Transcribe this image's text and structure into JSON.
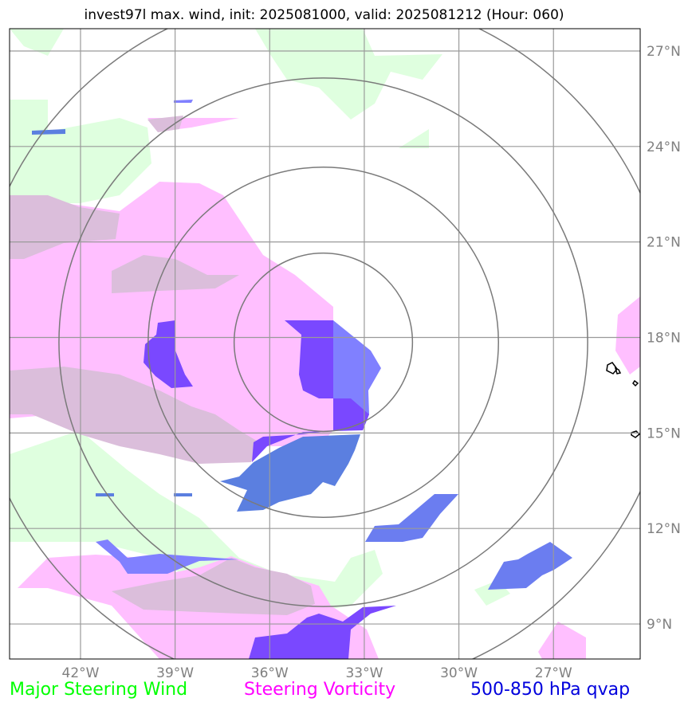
{
  "title": "invest97l max. wind, init: 2025081000, valid: 2025081212 (Hour: 060)",
  "map": {
    "type": "map",
    "extent": {
      "lon_min": -44.25,
      "lon_max": -24.25,
      "lat_min": 7.9,
      "lat_max": 27.7
    },
    "lon_ticks": [
      {
        "value": -42,
        "label": "42°W"
      },
      {
        "value": -39,
        "label": "39°W"
      },
      {
        "value": -36,
        "label": "36°W"
      },
      {
        "value": -33,
        "label": "33°W"
      },
      {
        "value": -30,
        "label": "30°W"
      },
      {
        "value": -27,
        "label": "27°W"
      }
    ],
    "lat_ticks": [
      {
        "value": 9,
        "label": "9°N"
      },
      {
        "value": 12,
        "label": "12°N"
      },
      {
        "value": 15,
        "label": "15°N"
      },
      {
        "value": 18,
        "label": "18°N"
      },
      {
        "value": 21,
        "label": "21°N"
      },
      {
        "value": 24,
        "label": "24°N"
      },
      {
        "value": 27,
        "label": "27°N"
      }
    ],
    "storm_center": {
      "lon": -34.3,
      "lat": 17.85
    },
    "range_rings_deg": [
      2.8,
      5.5,
      8.3,
      11.0
    ],
    "grid": true
  },
  "legend": [
    {
      "label": "Major Steering Wind",
      "color": "#00ff00"
    },
    {
      "label": "Steering Vorticity",
      "color": "#ff00ff"
    },
    {
      "label": "500-850 hPa qvap",
      "color": "#0000dd"
    }
  ],
  "colors": {
    "wind": "#dfffdf",
    "vorticity": "#ffbfff",
    "overlap": "#dbbedb",
    "qvap_light": "#8080ff",
    "qvap_dark": "#7a48ff",
    "qvap_mid": "#5b7fe0",
    "grid": "#9a9a9a",
    "ring": "#7a7a7a"
  }
}
